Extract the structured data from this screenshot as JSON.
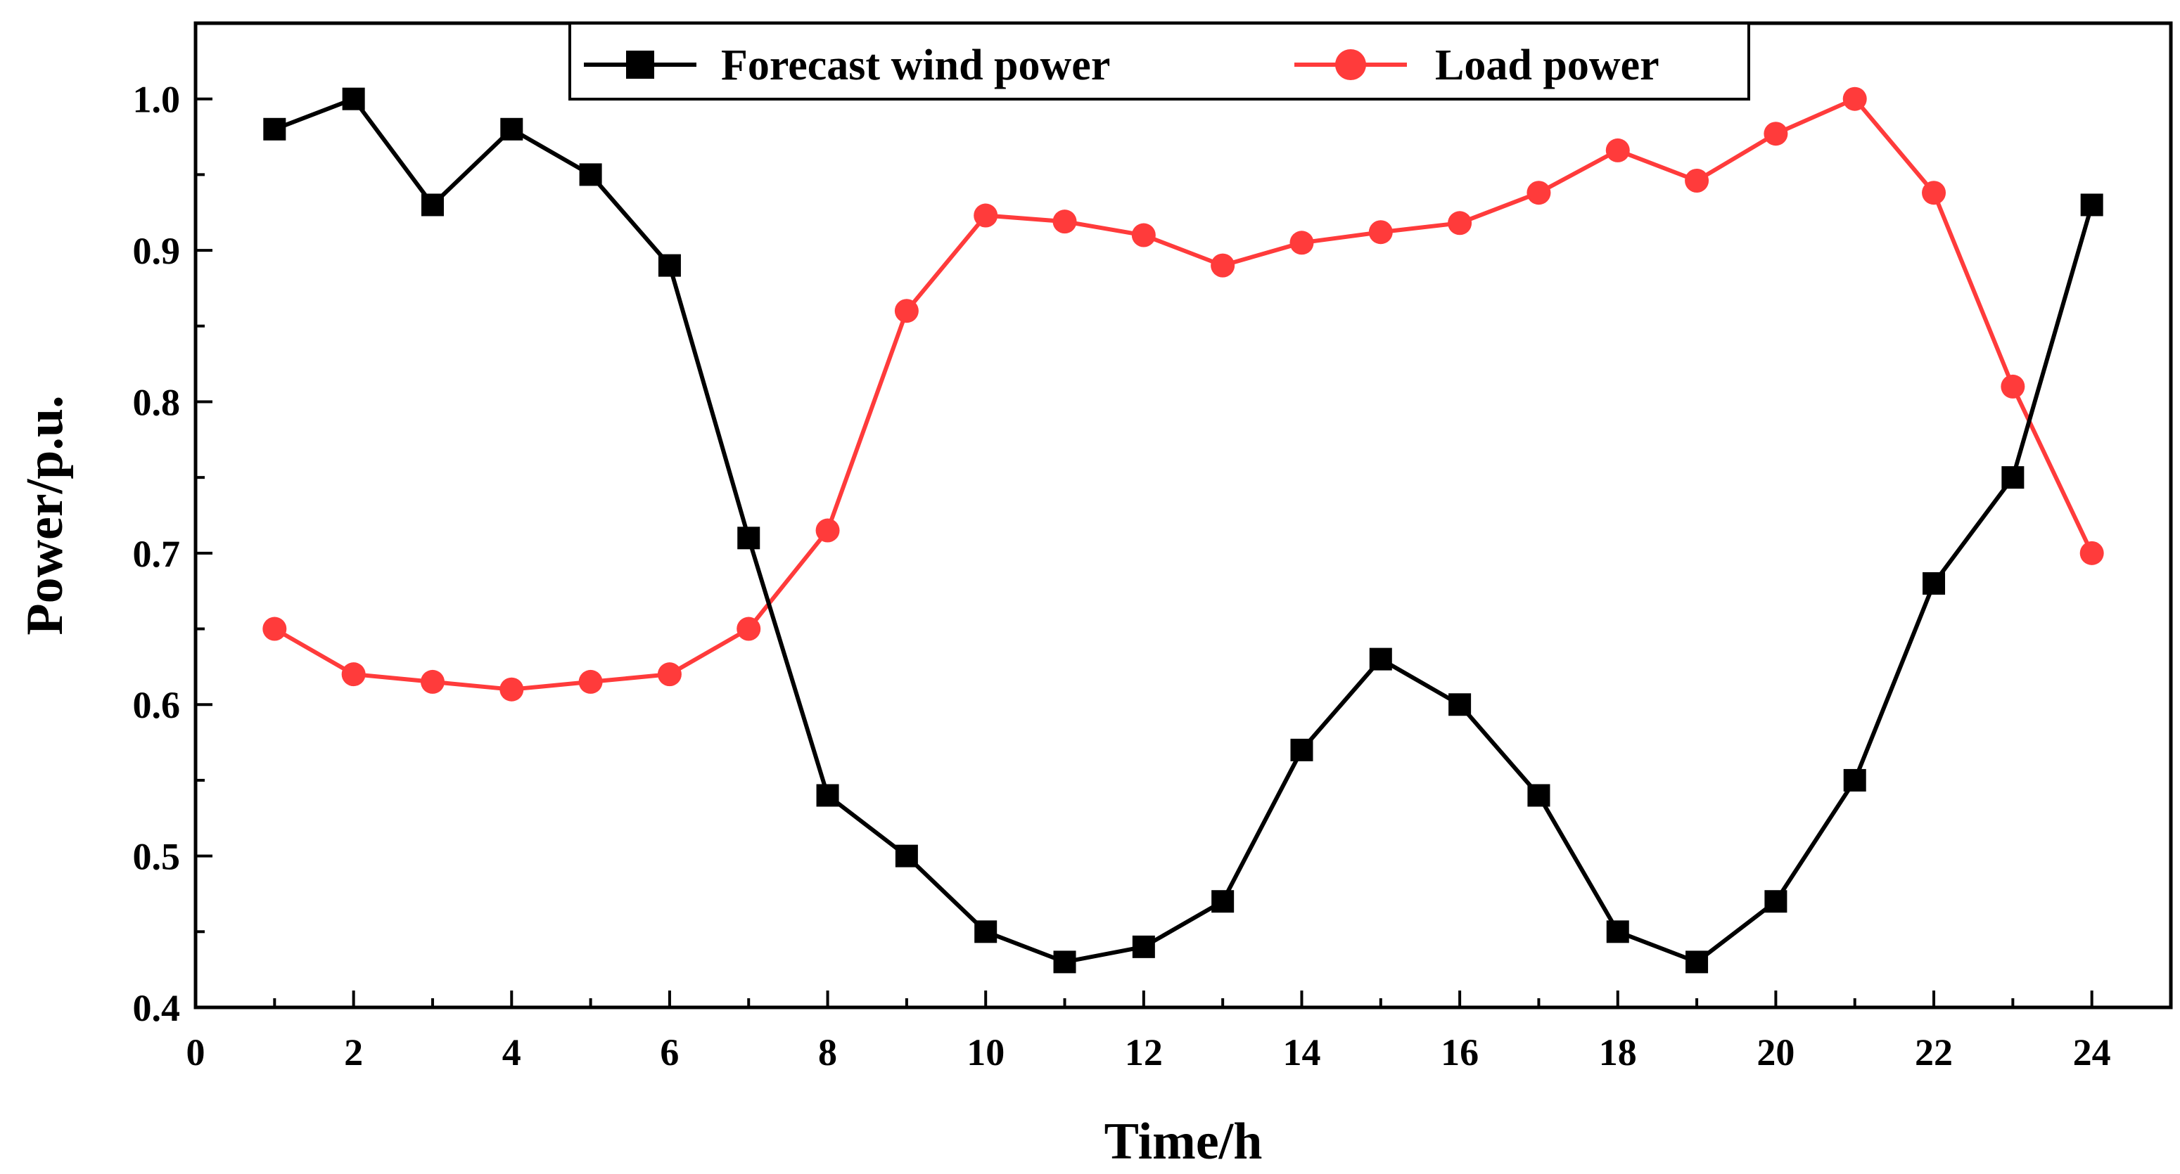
{
  "chart_data": {
    "type": "line",
    "title": "",
    "xlabel": "Time/h",
    "ylabel": "Power/p.u.",
    "xlim": [
      0,
      25
    ],
    "ylim": [
      0.4,
      1.05
    ],
    "x_ticks": [
      0,
      2,
      4,
      6,
      8,
      10,
      12,
      14,
      16,
      18,
      20,
      22,
      24
    ],
    "x_tick_labels": [
      "0",
      "2",
      "4",
      "6",
      "8",
      "10",
      "12",
      "14",
      "16",
      "18",
      "20",
      "22",
      "24"
    ],
    "y_ticks": [
      0.4,
      0.5,
      0.6,
      0.7,
      0.8,
      0.9,
      1.0
    ],
    "y_tick_labels": [
      "0.4",
      "0.5",
      "0.6",
      "0.7",
      "0.8",
      "0.9",
      "1.0"
    ],
    "grid": false,
    "legend_position": "top-center",
    "x": [
      1,
      2,
      3,
      4,
      5,
      6,
      7,
      8,
      9,
      10,
      11,
      12,
      13,
      14,
      15,
      16,
      17,
      18,
      19,
      20,
      21,
      22,
      23,
      24
    ],
    "series": [
      {
        "name": "Forecast wind power",
        "color": "#000000",
        "marker": "square",
        "values": [
          0.98,
          1.0,
          0.93,
          0.98,
          0.95,
          0.89,
          0.71,
          0.54,
          0.5,
          0.45,
          0.43,
          0.44,
          0.47,
          0.57,
          0.63,
          0.6,
          0.54,
          0.45,
          0.43,
          0.47,
          0.55,
          0.68,
          0.75,
          0.93
        ]
      },
      {
        "name": "Load power",
        "color": "#ff3b3b",
        "marker": "circle",
        "values": [
          0.65,
          0.62,
          0.615,
          0.61,
          0.615,
          0.62,
          0.65,
          0.715,
          0.86,
          0.923,
          0.919,
          0.91,
          0.89,
          0.905,
          0.912,
          0.918,
          0.938,
          0.966,
          0.946,
          0.977,
          1.0,
          0.938,
          0.81,
          0.7
        ]
      }
    ]
  }
}
